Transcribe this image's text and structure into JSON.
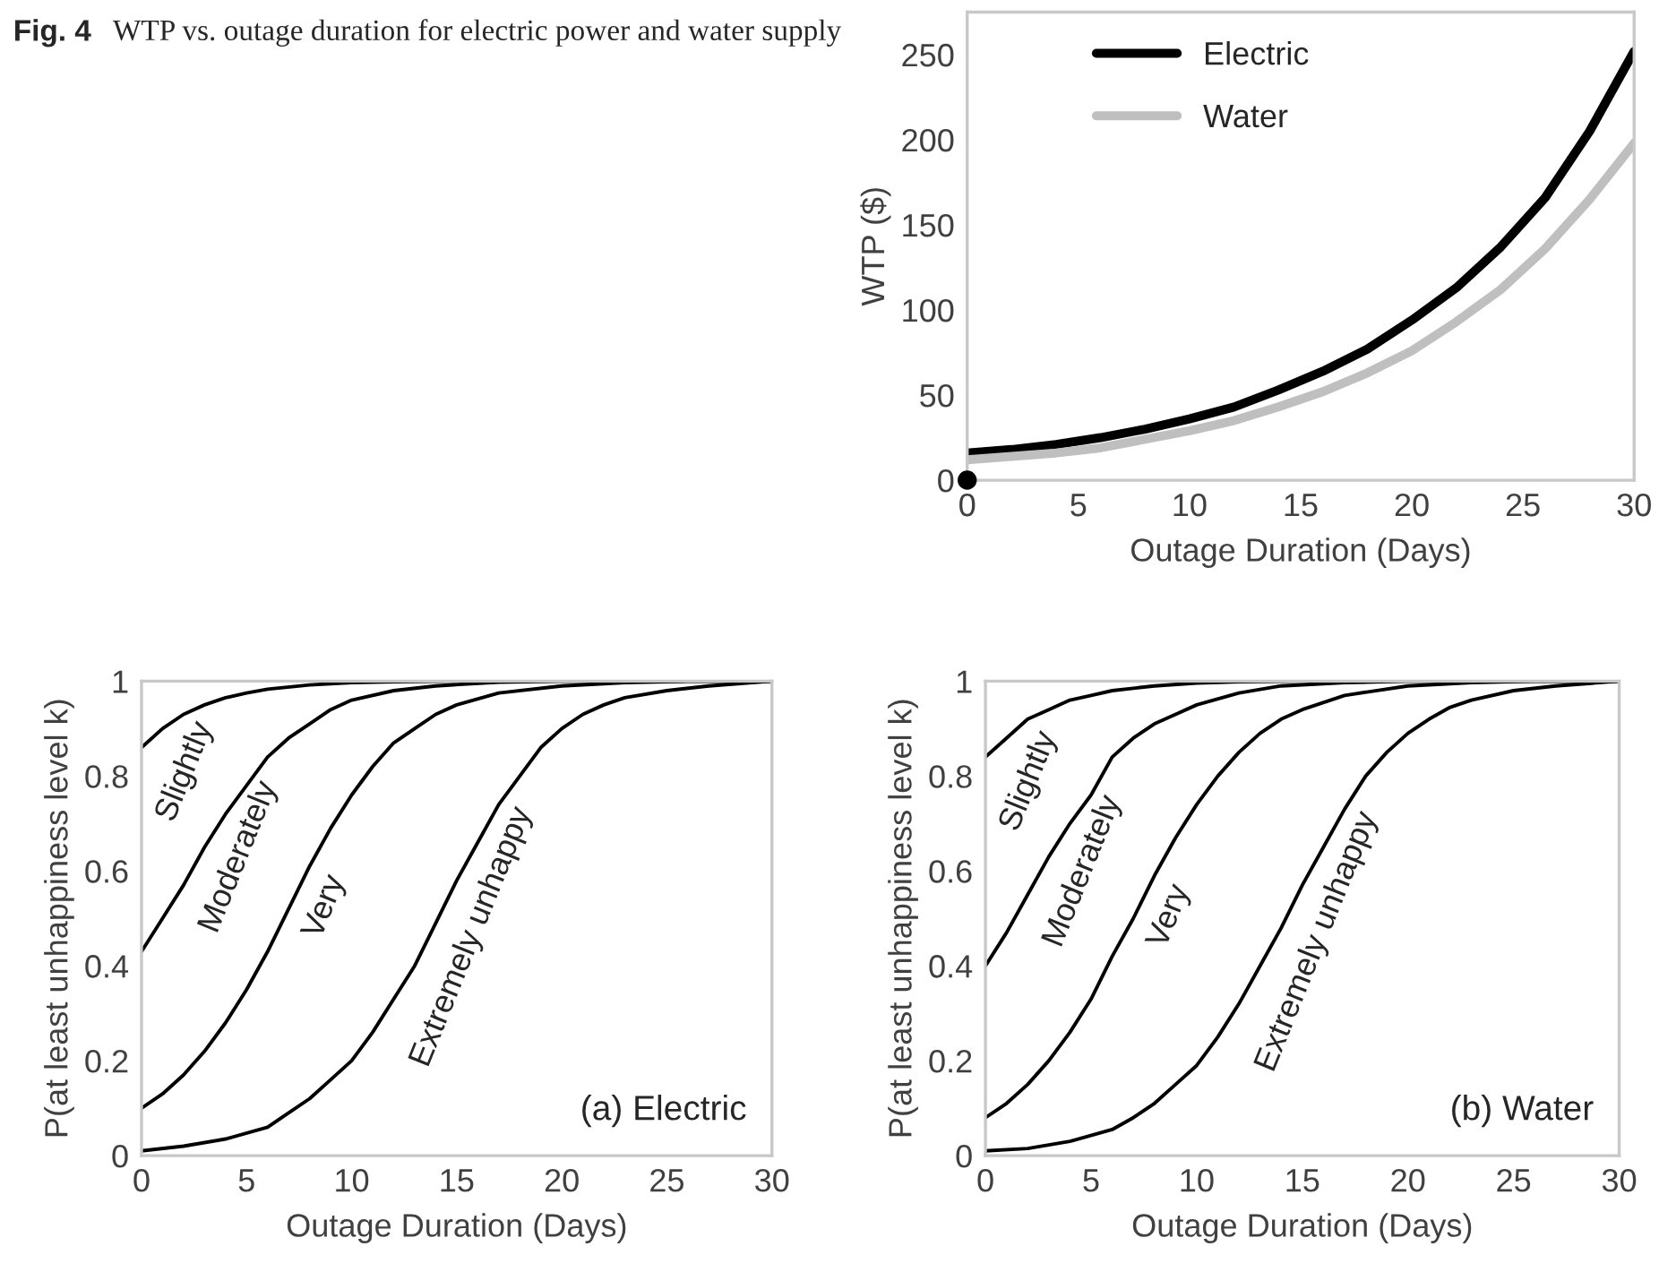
{
  "chart_data": [
    {
      "type": "other",
      "title": "Fig. 4",
      "subtitle": "WTP vs. outage duration for electric power and water supply"
    },
    {
      "type": "line",
      "xlabel": "Outage Duration (Days)",
      "ylabel": "WTP ($)",
      "xlim": [
        0,
        30
      ],
      "xticks": [
        0,
        5,
        10,
        15,
        20,
        25,
        30
      ],
      "ylim": [
        0,
        275
      ],
      "yticks": [
        0,
        50,
        100,
        150,
        200,
        250
      ],
      "grid": false,
      "legend": "top left",
      "series": [
        {
          "name": "Electric",
          "color": "#000000",
          "x": [
            0,
            2,
            4,
            6,
            8,
            10,
            12,
            14,
            16,
            18,
            20,
            22,
            24,
            26,
            28,
            30
          ],
          "values": [
            16,
            18,
            21,
            25,
            30,
            36,
            43,
            53,
            64,
            77,
            94,
            113,
            137,
            166,
            205,
            252
          ]
        },
        {
          "name": "Water",
          "color": "#bfbfbf",
          "x": [
            0,
            2,
            4,
            6,
            8,
            10,
            12,
            14,
            16,
            18,
            20,
            22,
            24,
            26,
            28,
            30
          ],
          "values": [
            12,
            14,
            16,
            19,
            24,
            29,
            35,
            43,
            52,
            63,
            76,
            93,
            112,
            136,
            165,
            198
          ]
        },
        {
          "type": "scatter",
          "color": "#000000",
          "marker": "circle",
          "x": [
            0
          ],
          "values": [
            0
          ]
        }
      ]
    },
    {
      "type": "line",
      "xlabel": "Outage Duration (Days)",
      "ylabel": "P(at least unhappiness level k)",
      "xlim": [
        0,
        30
      ],
      "xticks": [
        0,
        5,
        10,
        15,
        20,
        25,
        30
      ],
      "ylim": [
        0,
        1
      ],
      "yticks": [
        0,
        0.2,
        0.4,
        0.6,
        0.8,
        1
      ],
      "grid": false,
      "legend": false,
      "annotations": [
        "(a) Electric"
      ],
      "series": [
        {
          "name": "Slightly",
          "color": "#000000",
          "x": [
            0,
            1,
            2,
            3,
            4,
            5,
            6,
            8,
            10,
            12,
            15,
            30
          ],
          "values": [
            0.86,
            0.9,
            0.93,
            0.95,
            0.965,
            0.975,
            0.983,
            0.992,
            0.997,
            0.999,
            1,
            1
          ]
        },
        {
          "name": "Moderately",
          "color": "#000000",
          "x": [
            0,
            1,
            2,
            3,
            4,
            5,
            6,
            7,
            8,
            9,
            10,
            12,
            14,
            17,
            20,
            30
          ],
          "values": [
            0.43,
            0.5,
            0.57,
            0.65,
            0.72,
            0.78,
            0.84,
            0.88,
            0.91,
            0.94,
            0.96,
            0.98,
            0.99,
            0.998,
            1,
            1
          ]
        },
        {
          "name": "Very",
          "color": "#000000",
          "x": [
            0,
            1,
            2,
            3,
            4,
            5,
            6,
            7,
            8,
            9,
            10,
            11,
            12,
            13,
            14,
            15,
            17,
            20,
            23,
            26,
            30
          ],
          "values": [
            0.1,
            0.13,
            0.17,
            0.22,
            0.28,
            0.35,
            0.43,
            0.52,
            0.61,
            0.69,
            0.76,
            0.82,
            0.87,
            0.9,
            0.93,
            0.95,
            0.975,
            0.99,
            0.997,
            1,
            1
          ]
        },
        {
          "name": "Extremely unhappy",
          "color": "#000000",
          "x": [
            0,
            2,
            4,
            6,
            7,
            8,
            9,
            10,
            11,
            12,
            13,
            14,
            15,
            16,
            17,
            18,
            19,
            20,
            21,
            22,
            23,
            25,
            27,
            30
          ],
          "values": [
            0.01,
            0.02,
            0.035,
            0.06,
            0.09,
            0.12,
            0.16,
            0.2,
            0.26,
            0.33,
            0.4,
            0.49,
            0.58,
            0.66,
            0.74,
            0.8,
            0.86,
            0.9,
            0.93,
            0.95,
            0.965,
            0.98,
            0.99,
            1
          ]
        }
      ]
    },
    {
      "type": "line",
      "xlabel": "Outage Duration (Days)",
      "ylabel": "P(at least unhappiness level k)",
      "xlim": [
        0,
        30
      ],
      "xticks": [
        0,
        5,
        10,
        15,
        20,
        25,
        30
      ],
      "ylim": [
        0,
        1
      ],
      "yticks": [
        0,
        0.2,
        0.4,
        0.6,
        0.8,
        1
      ],
      "grid": false,
      "legend": false,
      "annotations": [
        "(b) Water"
      ],
      "series": [
        {
          "name": "Slightly",
          "color": "#000000",
          "x": [
            0,
            1,
            2,
            3,
            4,
            5,
            6,
            8,
            10,
            12,
            15,
            30
          ],
          "values": [
            0.84,
            0.88,
            0.92,
            0.94,
            0.96,
            0.97,
            0.98,
            0.99,
            0.996,
            0.999,
            1,
            1
          ]
        },
        {
          "name": "Moderately",
          "color": "#000000",
          "x": [
            0,
            1,
            2,
            3,
            4,
            5,
            6,
            7,
            8,
            9,
            10,
            12,
            14,
            17,
            20,
            30
          ],
          "values": [
            0.4,
            0.47,
            0.55,
            0.63,
            0.7,
            0.76,
            0.84,
            0.88,
            0.91,
            0.93,
            0.95,
            0.975,
            0.99,
            0.997,
            1,
            1
          ]
        },
        {
          "name": "Very",
          "color": "#000000",
          "x": [
            0,
            1,
            2,
            3,
            4,
            5,
            6,
            7,
            8,
            9,
            10,
            11,
            12,
            13,
            14,
            15,
            17,
            20,
            23,
            26,
            30
          ],
          "values": [
            0.08,
            0.11,
            0.15,
            0.2,
            0.26,
            0.33,
            0.42,
            0.5,
            0.59,
            0.67,
            0.74,
            0.8,
            0.85,
            0.89,
            0.92,
            0.94,
            0.97,
            0.99,
            0.997,
            1,
            1
          ]
        },
        {
          "name": "Extremely unhappy",
          "color": "#000000",
          "x": [
            0,
            2,
            4,
            6,
            7,
            8,
            9,
            10,
            11,
            12,
            13,
            14,
            15,
            16,
            17,
            18,
            19,
            20,
            21,
            22,
            23,
            25,
            27,
            30
          ],
          "values": [
            0.01,
            0.015,
            0.03,
            0.055,
            0.08,
            0.11,
            0.15,
            0.19,
            0.25,
            0.32,
            0.4,
            0.48,
            0.57,
            0.65,
            0.73,
            0.8,
            0.85,
            0.89,
            0.92,
            0.945,
            0.96,
            0.98,
            0.99,
            1
          ]
        }
      ]
    }
  ]
}
